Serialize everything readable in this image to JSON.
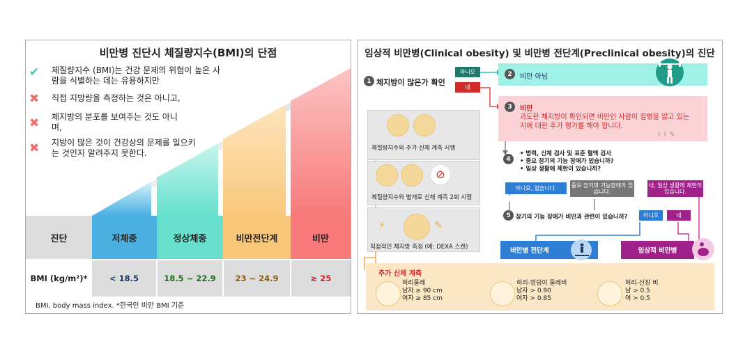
{
  "left": {
    "title": "비만병 진단시 체질량지수(BMI)의 단점",
    "criteria": [
      {
        "icon": "check-icon",
        "text": "체질량지수 (BMI)는 건강 문제의 위험이 높은 사람을 식별하는 데는 유용하지만"
      },
      {
        "icon": "cross-icon",
        "text": "직접 지방량을 측정하는 것은 아니고,"
      },
      {
        "icon": "cross-icon",
        "text": "체지방의 분포를 보여주는 것도 아니며,"
      },
      {
        "icon": "cross-icon",
        "text": "지방이 많은 것이 건강상의 문제를 일으키는 것인지 알려주지 못한다."
      }
    ],
    "table": {
      "row1_label": "진단",
      "row2_label": "BMI (kg/m²)*",
      "categories": [
        {
          "name": "저체중",
          "bmi": "< 18.5",
          "color": "#4ab0e2",
          "value_color": "#1f3864"
        },
        {
          "name": "정상체중",
          "bmi": "18.5 ~ 22.9",
          "color": "#66e0cc",
          "value_color": "#1e6b1e"
        },
        {
          "name": "비만전단계",
          "bmi": "23 ~ 24.9",
          "color": "#f9c77a",
          "value_color": "#8b5a14"
        },
        {
          "name": "비만",
          "bmi": "≥ 25",
          "color": "#f87a7a",
          "value_color": "#c0282d"
        }
      ]
    },
    "footnote": "BMI, body mass index. *한국인 비만 BMI 기준"
  },
  "right": {
    "title": "임상적 비만병(Clinical obesity) 및 비만병 전단계(Preclinical obesity)의 진단",
    "step1": {
      "num": "1",
      "text": "체지방이 많은가 확인"
    },
    "no_label": "아니오",
    "yes_label": "네",
    "step2": {
      "num": "2",
      "text": "비만 아님"
    },
    "step3": {
      "num": "3",
      "title": "비만",
      "desc": "과도한 체지방이 확인되면 비만인 사람이 질병을 앓고 있는지에 대한 추가 평가를 해야 합니다."
    },
    "step4": {
      "num": "4",
      "bullets": [
        "병력, 신체 검사 및 표준 혈액 검사",
        "중요 장기의  기능 장애가 있습니까?",
        "일상 생활에 제한이 있습니까?"
      ]
    },
    "answers": {
      "a1": "아니요, 없습니다.",
      "a2": "중요 장기의 기능장애가 있습니다.",
      "a3": "네, 일상 생활에 제한이 있습니다."
    },
    "step5": {
      "num": "5",
      "text": "장기의 기능 장애가 비만과 관련이 있습니까?"
    },
    "result_pre": "비만병 전단계",
    "result_clinical": "임상적 비만병",
    "methods": [
      "체질량지수와 추가 신체 계측 시행",
      "체질량지수와 별개로 신체 계측 2회 시행",
      "직접적인 체지방 측정 (예: DEXA 스캔)"
    ],
    "extra": {
      "title": "추가 신체 계측",
      "items": [
        {
          "name": "허리둘레",
          "lines": [
            "남자 ≥ 90 cm",
            "여자 ≥ 85 cm"
          ]
        },
        {
          "name": "허리-엉덩이 둘레비",
          "lines": [
            "남자 > 0.90",
            "여자 > 0.85"
          ]
        },
        {
          "name": "허리-신장 비",
          "lines": [
            "남 > 0.5",
            "여 > 0.5"
          ]
        }
      ]
    },
    "colors": {
      "teal": "#9ff0e6",
      "pink": "#fbd3d6",
      "orange": "#f5a742",
      "blue": "#2e7ed6",
      "purple": "#a1218a",
      "gray": "#777777",
      "beige": "#fbe6c6"
    }
  }
}
